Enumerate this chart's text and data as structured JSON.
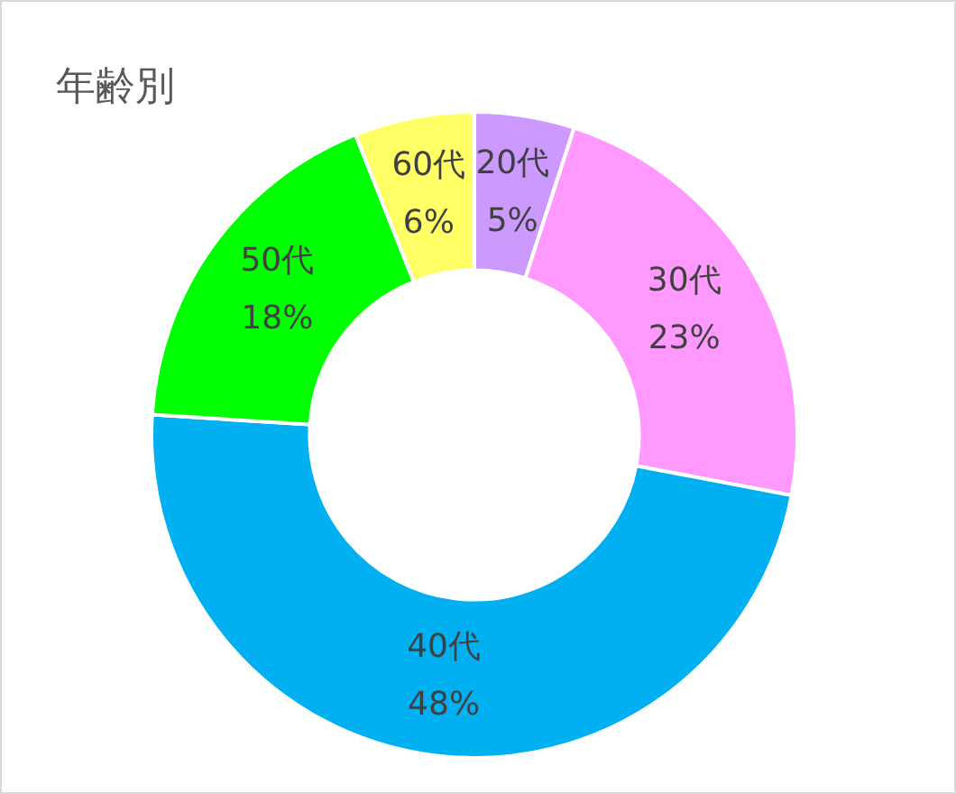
{
  "chart_data": {
    "type": "donut",
    "title": "年齢別",
    "categories": [
      "20代",
      "30代",
      "40代",
      "50代",
      "60代"
    ],
    "values": [
      5,
      23,
      48,
      18,
      6
    ],
    "value_labels": [
      "5%",
      "23%",
      "48%",
      "18%",
      "6%"
    ],
    "colors": [
      "#cc99ff",
      "#ff99ff",
      "#00b0f0",
      "#00ff00",
      "#ffff66"
    ],
    "legend": false
  }
}
